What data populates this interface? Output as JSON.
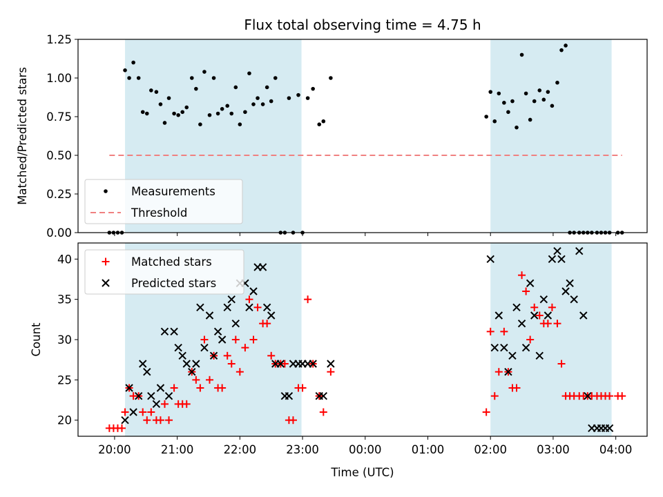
{
  "chart_data": [
    {
      "type": "scatter",
      "title": "Flux total observing time = 4.75 h",
      "ylabel": "Matched/Predicted stars",
      "xlabel": "",
      "xlim": [
        "19:25",
        "04:30"
      ],
      "ylim": [
        0,
        1.25
      ],
      "yticks": [
        "0.00",
        "0.25",
        "0.50",
        "0.75",
        "1.00",
        "1.25"
      ],
      "xticks": [
        "20:00",
        "21:00",
        "22:00",
        "23:00",
        "00:00",
        "01:00",
        "02:00",
        "03:00",
        "04:00"
      ],
      "legend_position": "lower-left",
      "shaded_intervals": [
        [
          "20:10",
          "22:59"
        ],
        [
          "02:00",
          "03:56"
        ]
      ],
      "shade_color": "#add8e6",
      "series": [
        {
          "name": "Measurements",
          "marker": "dot",
          "color": "#000000",
          "x": [
            "19:55",
            "19:59",
            "20:03",
            "20:07",
            "20:10",
            "20:14",
            "20:18",
            "20:23",
            "20:27",
            "20:31",
            "20:35",
            "20:40",
            "20:44",
            "20:48",
            "20:52",
            "20:57",
            "21:01",
            "21:05",
            "21:09",
            "21:14",
            "21:18",
            "21:22",
            "21:26",
            "21:31",
            "21:35",
            "21:39",
            "21:43",
            "21:48",
            "21:52",
            "21:56",
            "22:00",
            "22:05",
            "22:09",
            "22:13",
            "22:17",
            "22:22",
            "22:26",
            "22:30",
            "22:34",
            "22:39",
            "22:43",
            "22:47",
            "22:51",
            "22:56",
            "23:00",
            "23:05",
            "23:10",
            "23:16",
            "23:20",
            "23:27",
            "01:56",
            "02:00",
            "02:04",
            "02:08",
            "02:13",
            "02:17",
            "02:21",
            "02:25",
            "02:30",
            "02:34",
            "02:38",
            "02:42",
            "02:47",
            "02:51",
            "02:55",
            "02:59",
            "03:04",
            "03:08",
            "03:12",
            "03:16",
            "03:20",
            "03:25",
            "03:29",
            "03:33",
            "03:37",
            "03:42",
            "03:46",
            "03:50",
            "03:54",
            "04:02",
            "04:06"
          ],
          "y": [
            0,
            0,
            0,
            0,
            1.05,
            1.0,
            1.1,
            1.0,
            0.78,
            0.77,
            0.92,
            0.91,
            0.83,
            0.71,
            0.87,
            0.77,
            0.76,
            0.78,
            0.81,
            1.0,
            0.93,
            0.7,
            1.04,
            0.76,
            1.0,
            0.77,
            0.8,
            0.82,
            0.77,
            0.94,
            0.7,
            0.78,
            1.03,
            0.83,
            0.87,
            0.83,
            0.94,
            0.85,
            1.0,
            0,
            0,
            0.87,
            0,
            0.89,
            0,
            0.87,
            0.93,
            0.7,
            0.72,
            1.0,
            0.75,
            0.91,
            0.72,
            0.9,
            0.84,
            0.78,
            0.85,
            0.68,
            1.15,
            0.9,
            0.73,
            0.85,
            0.92,
            0.86,
            0.91,
            0.82,
            0.97,
            1.18,
            1.21,
            0,
            0,
            0,
            0,
            0,
            0,
            0,
            0,
            0,
            0,
            0,
            0
          ]
        },
        {
          "name": "Threshold",
          "style": "dashed",
          "color": "#f08080",
          "x": [
            "19:55",
            "04:06"
          ],
          "y": [
            0.5,
            0.5
          ]
        }
      ]
    },
    {
      "type": "scatter",
      "title": "",
      "ylabel": "Count",
      "xlabel": "Time (UTC)",
      "xlim": [
        "19:25",
        "04:30"
      ],
      "ylim": [
        18,
        42
      ],
      "yticks": [
        "20",
        "25",
        "30",
        "35",
        "40"
      ],
      "xticks": [
        "20:00",
        "21:00",
        "22:00",
        "23:00",
        "00:00",
        "01:00",
        "02:00",
        "03:00",
        "04:00"
      ],
      "legend_position": "upper-left",
      "shaded_intervals": [
        [
          "20:10",
          "22:59"
        ],
        [
          "02:00",
          "03:56"
        ]
      ],
      "shade_color": "#add8e6",
      "series": [
        {
          "name": "Matched stars",
          "marker": "plus",
          "color": "#ff0000",
          "x": [
            "19:55",
            "19:59",
            "20:03",
            "20:07",
            "20:10",
            "20:14",
            "20:18",
            "20:23",
            "20:27",
            "20:31",
            "20:35",
            "20:40",
            "20:44",
            "20:48",
            "20:52",
            "20:57",
            "21:01",
            "21:05",
            "21:09",
            "21:14",
            "21:18",
            "21:22",
            "21:26",
            "21:31",
            "21:35",
            "21:39",
            "21:43",
            "21:48",
            "21:52",
            "21:56",
            "22:00",
            "22:05",
            "22:09",
            "22:13",
            "22:17",
            "22:22",
            "22:26",
            "22:30",
            "22:34",
            "22:39",
            "22:43",
            "22:47",
            "22:51",
            "22:56",
            "23:00",
            "23:05",
            "23:10",
            "23:16",
            "23:20",
            "23:27",
            "01:56",
            "02:00",
            "02:04",
            "02:08",
            "02:13",
            "02:17",
            "02:21",
            "02:25",
            "02:30",
            "02:34",
            "02:38",
            "02:42",
            "02:47",
            "02:51",
            "02:55",
            "02:59",
            "03:04",
            "03:08",
            "03:12",
            "03:16",
            "03:20",
            "03:25",
            "03:29",
            "03:33",
            "03:37",
            "03:42",
            "03:46",
            "03:50",
            "03:54",
            "04:02",
            "04:06"
          ],
          "y": [
            19,
            19,
            19,
            19,
            21,
            24,
            23,
            23,
            21,
            20,
            21,
            20,
            20,
            22,
            20,
            24,
            22,
            22,
            22,
            26,
            25,
            24,
            30,
            25,
            28,
            24,
            24,
            28,
            27,
            30,
            26,
            29,
            35,
            30,
            34,
            32,
            32,
            28,
            27,
            27,
            27,
            20,
            20,
            24,
            24,
            35,
            27,
            23,
            21,
            26,
            21,
            31,
            23,
            26,
            31,
            26,
            24,
            24,
            38,
            36,
            30,
            34,
            33,
            32,
            32,
            34,
            32,
            27,
            23,
            23,
            23,
            23,
            23,
            23,
            23,
            23,
            23,
            23,
            23,
            23,
            23
          ]
        },
        {
          "name": "Predicted stars",
          "marker": "x",
          "color": "#000000",
          "x": [
            "20:10",
            "20:14",
            "20:18",
            "20:23",
            "20:27",
            "20:31",
            "20:35",
            "20:40",
            "20:44",
            "20:48",
            "20:52",
            "20:57",
            "21:01",
            "21:05",
            "21:09",
            "21:14",
            "21:18",
            "21:22",
            "21:26",
            "21:31",
            "21:35",
            "21:39",
            "21:43",
            "21:48",
            "21:52",
            "21:56",
            "22:00",
            "22:05",
            "22:09",
            "22:13",
            "22:17",
            "22:22",
            "22:26",
            "22:30",
            "22:34",
            "22:39",
            "22:43",
            "22:47",
            "22:51",
            "22:56",
            "23:00",
            "23:05",
            "23:10",
            "23:16",
            "23:20",
            "23:27",
            "02:00",
            "02:04",
            "02:08",
            "02:13",
            "02:17",
            "02:21",
            "02:25",
            "02:30",
            "02:34",
            "02:38",
            "02:42",
            "02:47",
            "02:51",
            "02:55",
            "02:59",
            "03:04",
            "03:08",
            "03:12",
            "03:16",
            "03:20",
            "03:25",
            "03:29",
            "03:33",
            "03:37",
            "03:42",
            "03:46",
            "03:50",
            "03:54"
          ],
          "y": [
            20,
            24,
            21,
            23,
            27,
            26,
            23,
            22,
            24,
            31,
            23,
            31,
            29,
            28,
            27,
            26,
            27,
            34,
            29,
            33,
            28,
            31,
            30,
            34,
            35,
            32,
            37,
            37,
            34,
            36,
            39,
            39,
            34,
            33,
            27,
            27,
            23,
            23,
            27,
            27,
            27,
            27,
            27,
            23,
            23,
            27,
            40,
            29,
            33,
            29,
            26,
            28,
            34,
            32,
            29,
            37,
            33,
            28,
            35,
            33,
            40,
            41,
            40,
            36,
            37,
            35,
            41,
            33,
            23,
            19,
            19,
            19,
            19,
            19
          ]
        }
      ]
    }
  ]
}
